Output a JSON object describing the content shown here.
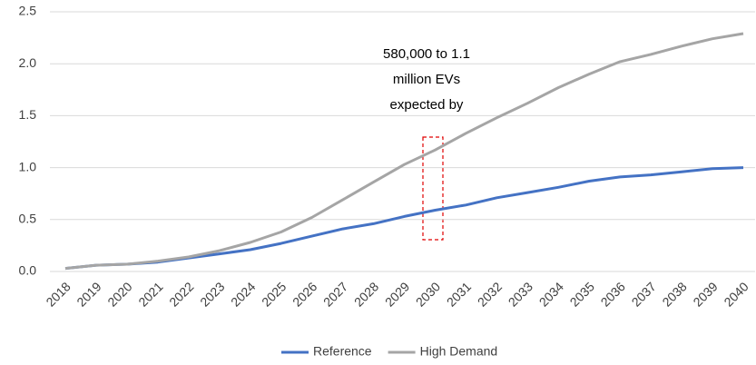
{
  "chart_data": {
    "type": "line",
    "annotation": [
      "580,000 to 1.1",
      "million EVs",
      "expected by"
    ],
    "categories": [
      "2018",
      "2019",
      "2020",
      "2021",
      "2022",
      "2023",
      "2024",
      "2025",
      "2026",
      "2027",
      "2028",
      "2029",
      "2030",
      "2031",
      "2032",
      "2033",
      "2034",
      "2035",
      "2036",
      "2037",
      "2038",
      "2039",
      "2040"
    ],
    "series": [
      {
        "name": "Reference",
        "color": "#4472c4",
        "values": [
          0.03,
          0.06,
          0.07,
          0.09,
          0.13,
          0.17,
          0.21,
          0.27,
          0.34,
          0.41,
          0.46,
          0.53,
          0.59,
          0.64,
          0.71,
          0.76,
          0.81,
          0.87,
          0.91,
          0.93,
          0.96,
          0.99,
          1.0
        ]
      },
      {
        "name": "High Demand",
        "color": "#a5a5a5",
        "values": [
          0.03,
          0.06,
          0.07,
          0.1,
          0.14,
          0.2,
          0.28,
          0.38,
          0.52,
          0.69,
          0.86,
          1.03,
          1.17,
          1.33,
          1.48,
          1.62,
          1.77,
          1.9,
          2.02,
          2.09,
          2.17,
          2.24,
          2.29
        ]
      }
    ],
    "ylim": [
      0,
      2.5
    ],
    "yticks": [
      {
        "value": 0,
        "label": "0.0"
      },
      0.5,
      {
        "value": 1,
        "label": "1.0"
      },
      1.5,
      {
        "value": 2,
        "label": "2.0"
      },
      2.5
    ],
    "grid": true,
    "legend": "bottom"
  }
}
